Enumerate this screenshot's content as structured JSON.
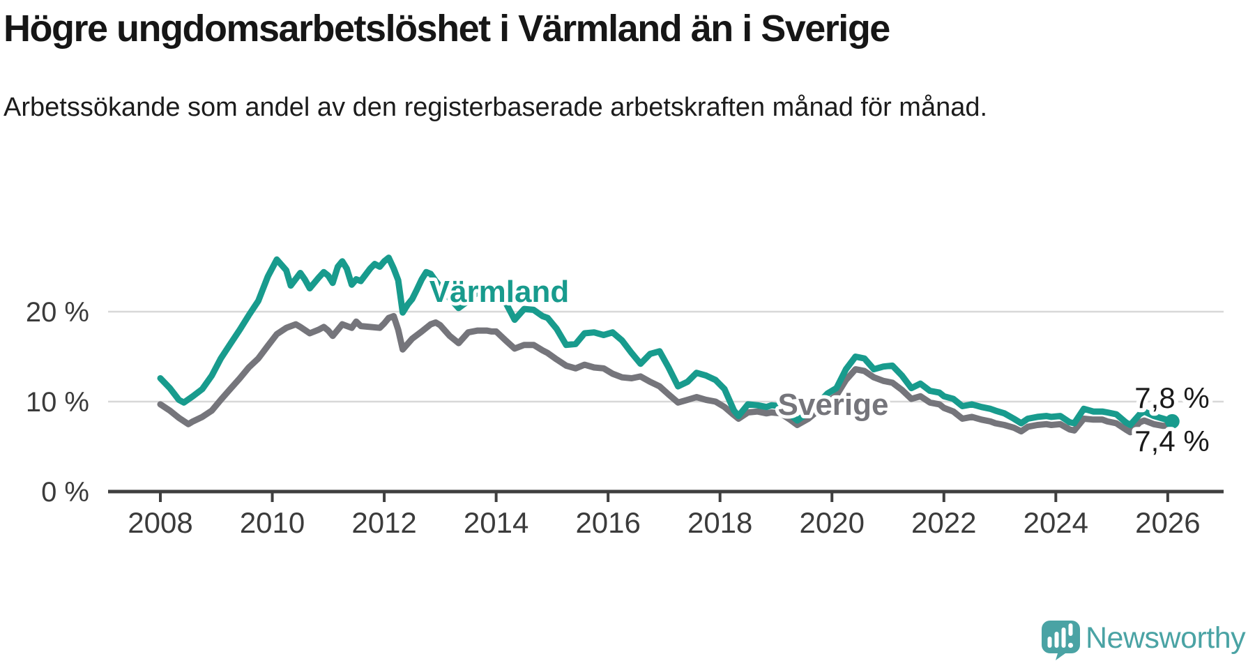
{
  "title": "Högre ungdomsarbetslöshet i Värmland än i Sverige",
  "subtitle": "Arbetssökande som andel av den registerbaserade arbetskraften månad för månad.",
  "branding": {
    "logo_text": "Newsworthy",
    "logo_color": "#4aa3a4",
    "logo_icon": "speech-bubble-with-bar-chart-and-exclamation"
  },
  "colors": {
    "varmland_line": "#189b8d",
    "sverige_line": "#75757b",
    "axis": "#3f3f3f",
    "gridline": "#d8d8d8",
    "text": "#1a1a1a",
    "tick_text": "#3b3b3b"
  },
  "chart_data": {
    "type": "line",
    "title": "Högre ungdomsarbetslöshet i Värmland än i Sverige",
    "subtitle": "Arbetssökande som andel av den registerbaserade arbetskraften månad för månad.",
    "unit": "%",
    "grid": "horizontal",
    "legend": "inline-labels",
    "x_axis": {
      "range": [
        2007.1,
        2027.0
      ],
      "tick_years": [
        2008,
        2010,
        2012,
        2014,
        2016,
        2018,
        2020,
        2022,
        2024,
        2026
      ]
    },
    "y_axis": {
      "range": [
        0,
        27.9
      ],
      "tick_values": [
        0,
        10,
        20
      ],
      "tick_labels": [
        "0 %",
        "10 %",
        "20 %"
      ]
    },
    "series": [
      {
        "name": "Värmland",
        "color": "#189b8d",
        "end_label": "7,8 %",
        "end_value": 7.8,
        "points": [
          [
            2008.0,
            12.6
          ],
          [
            2008.17,
            11.5
          ],
          [
            2008.33,
            10.2
          ],
          [
            2008.42,
            9.9
          ],
          [
            2008.58,
            10.6
          ],
          [
            2008.75,
            11.4
          ],
          [
            2008.92,
            12.9
          ],
          [
            2009.08,
            14.8
          ],
          [
            2009.25,
            16.4
          ],
          [
            2009.42,
            18.0
          ],
          [
            2009.58,
            19.6
          ],
          [
            2009.75,
            21.2
          ],
          [
            2009.92,
            23.9
          ],
          [
            2010.08,
            25.8
          ],
          [
            2010.25,
            24.6
          ],
          [
            2010.33,
            22.9
          ],
          [
            2010.5,
            24.3
          ],
          [
            2010.58,
            23.6
          ],
          [
            2010.67,
            22.6
          ],
          [
            2010.83,
            23.8
          ],
          [
            2010.92,
            24.4
          ],
          [
            2011.0,
            24.0
          ],
          [
            2011.08,
            23.2
          ],
          [
            2011.17,
            25.0
          ],
          [
            2011.25,
            25.6
          ],
          [
            2011.33,
            24.8
          ],
          [
            2011.42,
            23.0
          ],
          [
            2011.5,
            23.6
          ],
          [
            2011.58,
            23.4
          ],
          [
            2011.75,
            24.8
          ],
          [
            2011.83,
            25.3
          ],
          [
            2011.92,
            25.0
          ],
          [
            2012.0,
            25.6
          ],
          [
            2012.08,
            26.0
          ],
          [
            2012.17,
            24.8
          ],
          [
            2012.25,
            23.5
          ],
          [
            2012.33,
            19.9
          ],
          [
            2012.42,
            20.8
          ],
          [
            2012.5,
            21.4
          ],
          [
            2012.58,
            22.4
          ],
          [
            2012.67,
            23.6
          ],
          [
            2012.75,
            24.4
          ],
          [
            2012.83,
            24.2
          ],
          [
            2012.92,
            23.4
          ],
          [
            2013.0,
            22.8
          ],
          [
            2013.17,
            21.5
          ],
          [
            2013.33,
            20.4
          ],
          [
            2013.5,
            21.2
          ],
          [
            2013.67,
            22.2
          ],
          [
            2013.83,
            22.6
          ],
          [
            2013.92,
            22.0
          ],
          [
            2014.0,
            21.4
          ],
          [
            2014.17,
            21.0
          ],
          [
            2014.33,
            19.1
          ],
          [
            2014.5,
            20.3
          ],
          [
            2014.67,
            20.2
          ],
          [
            2014.83,
            19.5
          ],
          [
            2014.92,
            19.3
          ],
          [
            2015.08,
            18.1
          ],
          [
            2015.25,
            16.3
          ],
          [
            2015.42,
            16.4
          ],
          [
            2015.58,
            17.6
          ],
          [
            2015.75,
            17.7
          ],
          [
            2015.92,
            17.4
          ],
          [
            2016.08,
            17.7
          ],
          [
            2016.25,
            16.8
          ],
          [
            2016.42,
            15.4
          ],
          [
            2016.58,
            14.2
          ],
          [
            2016.75,
            15.3
          ],
          [
            2016.92,
            15.6
          ],
          [
            2017.08,
            13.8
          ],
          [
            2017.25,
            11.7
          ],
          [
            2017.42,
            12.2
          ],
          [
            2017.58,
            13.2
          ],
          [
            2017.75,
            12.9
          ],
          [
            2017.92,
            12.4
          ],
          [
            2018.08,
            11.4
          ],
          [
            2018.25,
            9.0
          ],
          [
            2018.33,
            8.4
          ],
          [
            2018.5,
            9.7
          ],
          [
            2018.67,
            9.6
          ],
          [
            2018.83,
            9.4
          ],
          [
            2018.92,
            9.6
          ],
          [
            2019.08,
            9.5
          ],
          [
            2019.25,
            8.6
          ],
          [
            2019.38,
            7.9
          ],
          [
            2019.58,
            8.8
          ],
          [
            2019.75,
            9.8
          ],
          [
            2019.92,
            10.9
          ],
          [
            2020.08,
            11.5
          ],
          [
            2020.25,
            13.6
          ],
          [
            2020.42,
            15.0
          ],
          [
            2020.58,
            14.8
          ],
          [
            2020.75,
            13.6
          ],
          [
            2020.92,
            13.9
          ],
          [
            2021.08,
            14.0
          ],
          [
            2021.25,
            12.9
          ],
          [
            2021.42,
            11.5
          ],
          [
            2021.58,
            12.0
          ],
          [
            2021.75,
            11.2
          ],
          [
            2021.92,
            11.0
          ],
          [
            2022.0,
            10.6
          ],
          [
            2022.17,
            10.3
          ],
          [
            2022.33,
            9.5
          ],
          [
            2022.5,
            9.7
          ],
          [
            2022.67,
            9.4
          ],
          [
            2022.83,
            9.2
          ],
          [
            2022.92,
            9.0
          ],
          [
            2023.08,
            8.7
          ],
          [
            2023.25,
            8.1
          ],
          [
            2023.38,
            7.6
          ],
          [
            2023.5,
            8.1
          ],
          [
            2023.67,
            8.3
          ],
          [
            2023.83,
            8.4
          ],
          [
            2023.92,
            8.3
          ],
          [
            2024.08,
            8.4
          ],
          [
            2024.25,
            7.7
          ],
          [
            2024.33,
            7.6
          ],
          [
            2024.5,
            9.2
          ],
          [
            2024.67,
            8.9
          ],
          [
            2024.83,
            8.9
          ],
          [
            2024.92,
            8.8
          ],
          [
            2025.08,
            8.6
          ],
          [
            2025.25,
            7.7
          ],
          [
            2025.33,
            7.4
          ],
          [
            2025.5,
            8.6
          ],
          [
            2025.58,
            8.9
          ],
          [
            2025.75,
            8.4
          ],
          [
            2025.92,
            8.1
          ],
          [
            2026.08,
            7.8
          ]
        ]
      },
      {
        "name": "Sverige",
        "color": "#75757b",
        "end_label": "7,4 %",
        "end_value": 7.4,
        "points": [
          [
            2008.0,
            9.7
          ],
          [
            2008.17,
            9.0
          ],
          [
            2008.33,
            8.2
          ],
          [
            2008.5,
            7.5
          ],
          [
            2008.58,
            7.8
          ],
          [
            2008.75,
            8.3
          ],
          [
            2008.92,
            9.0
          ],
          [
            2009.08,
            10.2
          ],
          [
            2009.25,
            11.4
          ],
          [
            2009.42,
            12.6
          ],
          [
            2009.58,
            13.8
          ],
          [
            2009.75,
            14.8
          ],
          [
            2009.92,
            16.2
          ],
          [
            2010.08,
            17.5
          ],
          [
            2010.25,
            18.2
          ],
          [
            2010.42,
            18.6
          ],
          [
            2010.5,
            18.3
          ],
          [
            2010.67,
            17.6
          ],
          [
            2010.83,
            18.0
          ],
          [
            2010.92,
            18.3
          ],
          [
            2011.0,
            17.9
          ],
          [
            2011.08,
            17.3
          ],
          [
            2011.25,
            18.6
          ],
          [
            2011.42,
            18.2
          ],
          [
            2011.5,
            18.9
          ],
          [
            2011.58,
            18.4
          ],
          [
            2011.75,
            18.3
          ],
          [
            2011.92,
            18.2
          ],
          [
            2012.0,
            18.7
          ],
          [
            2012.08,
            19.3
          ],
          [
            2012.17,
            19.5
          ],
          [
            2012.25,
            18.0
          ],
          [
            2012.33,
            15.8
          ],
          [
            2012.5,
            17.0
          ],
          [
            2012.67,
            17.8
          ],
          [
            2012.83,
            18.6
          ],
          [
            2012.92,
            18.8
          ],
          [
            2013.0,
            18.5
          ],
          [
            2013.17,
            17.3
          ],
          [
            2013.33,
            16.5
          ],
          [
            2013.5,
            17.7
          ],
          [
            2013.67,
            17.9
          ],
          [
            2013.83,
            17.9
          ],
          [
            2013.92,
            17.8
          ],
          [
            2014.0,
            17.8
          ],
          [
            2014.17,
            16.8
          ],
          [
            2014.33,
            15.9
          ],
          [
            2014.5,
            16.3
          ],
          [
            2014.67,
            16.3
          ],
          [
            2014.83,
            15.7
          ],
          [
            2014.92,
            15.4
          ],
          [
            2015.08,
            14.7
          ],
          [
            2015.25,
            14.0
          ],
          [
            2015.42,
            13.7
          ],
          [
            2015.58,
            14.1
          ],
          [
            2015.75,
            13.8
          ],
          [
            2015.92,
            13.7
          ],
          [
            2016.08,
            13.1
          ],
          [
            2016.25,
            12.7
          ],
          [
            2016.42,
            12.6
          ],
          [
            2016.58,
            12.8
          ],
          [
            2016.75,
            12.2
          ],
          [
            2016.92,
            11.7
          ],
          [
            2017.08,
            10.8
          ],
          [
            2017.25,
            9.9
          ],
          [
            2017.42,
            10.2
          ],
          [
            2017.58,
            10.5
          ],
          [
            2017.75,
            10.2
          ],
          [
            2017.92,
            10.0
          ],
          [
            2018.08,
            9.4
          ],
          [
            2018.25,
            8.5
          ],
          [
            2018.33,
            8.1
          ],
          [
            2018.5,
            8.8
          ],
          [
            2018.67,
            8.9
          ],
          [
            2018.83,
            8.7
          ],
          [
            2018.92,
            8.8
          ],
          [
            2019.08,
            8.7
          ],
          [
            2019.25,
            8.0
          ],
          [
            2019.38,
            7.4
          ],
          [
            2019.58,
            8.1
          ],
          [
            2019.75,
            9.0
          ],
          [
            2019.92,
            10.0
          ],
          [
            2020.08,
            10.7
          ],
          [
            2020.25,
            12.4
          ],
          [
            2020.42,
            13.6
          ],
          [
            2020.58,
            13.4
          ],
          [
            2020.75,
            12.7
          ],
          [
            2020.92,
            12.3
          ],
          [
            2021.08,
            12.1
          ],
          [
            2021.25,
            11.3
          ],
          [
            2021.42,
            10.3
          ],
          [
            2021.58,
            10.6
          ],
          [
            2021.75,
            9.9
          ],
          [
            2021.92,
            9.7
          ],
          [
            2022.0,
            9.3
          ],
          [
            2022.17,
            8.9
          ],
          [
            2022.33,
            8.1
          ],
          [
            2022.5,
            8.3
          ],
          [
            2022.67,
            8.0
          ],
          [
            2022.83,
            7.8
          ],
          [
            2022.92,
            7.6
          ],
          [
            2023.08,
            7.4
          ],
          [
            2023.25,
            7.1
          ],
          [
            2023.38,
            6.7
          ],
          [
            2023.5,
            7.2
          ],
          [
            2023.67,
            7.4
          ],
          [
            2023.83,
            7.5
          ],
          [
            2023.92,
            7.4
          ],
          [
            2024.08,
            7.5
          ],
          [
            2024.25,
            6.9
          ],
          [
            2024.33,
            6.8
          ],
          [
            2024.5,
            8.1
          ],
          [
            2024.67,
            8.0
          ],
          [
            2024.83,
            8.0
          ],
          [
            2024.92,
            7.8
          ],
          [
            2025.08,
            7.6
          ],
          [
            2025.25,
            6.9
          ],
          [
            2025.33,
            6.6
          ],
          [
            2025.5,
            7.7
          ],
          [
            2025.58,
            7.9
          ],
          [
            2025.75,
            7.5
          ],
          [
            2025.92,
            7.3
          ],
          [
            2026.08,
            7.4
          ]
        ]
      }
    ]
  }
}
